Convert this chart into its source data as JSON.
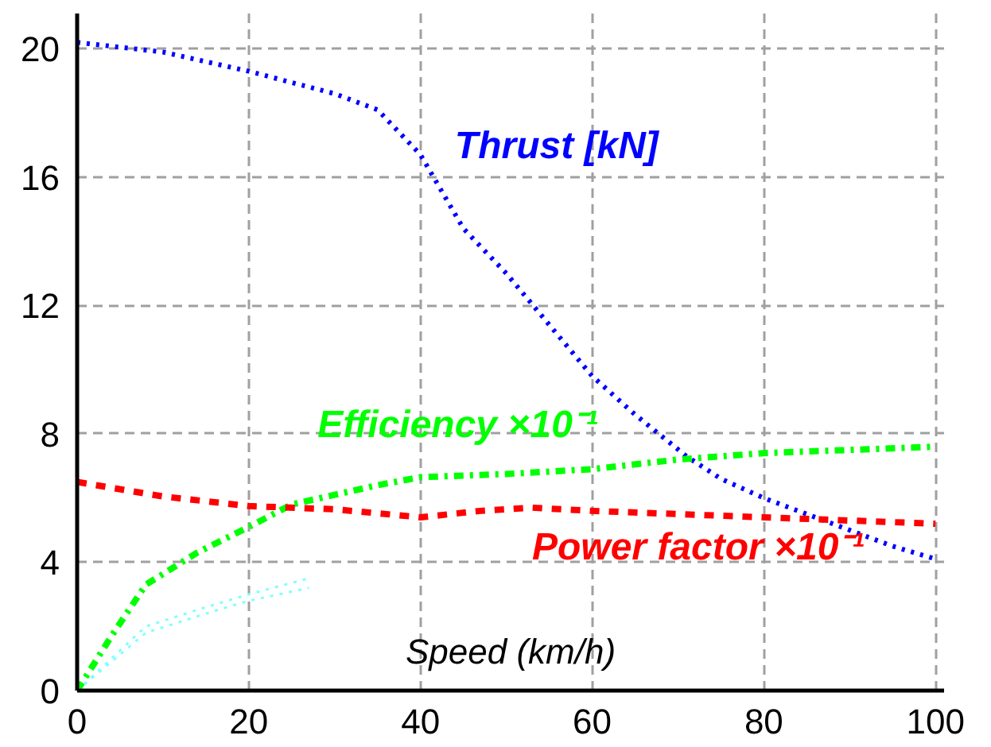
{
  "chart_data": {
    "type": "line",
    "xlabel": "Speed (km/h)",
    "xlim": [
      0,
      101
    ],
    "ylim": [
      0,
      21.1
    ],
    "xticks": [
      0,
      20,
      40,
      60,
      80,
      100
    ],
    "yticks": [
      0,
      4,
      8,
      12,
      16,
      20
    ],
    "grid": true,
    "series": [
      {
        "name": "Thrust [kN]",
        "color": "#0000ff",
        "line_style": "dotted",
        "x": [
          0,
          10,
          20,
          30,
          35,
          40,
          45,
          50,
          55,
          60,
          65,
          71,
          75,
          80,
          85,
          90,
          95,
          100
        ],
        "values": [
          20.2,
          19.9,
          19.3,
          18.6,
          18.1,
          16.7,
          14.4,
          13.0,
          11.4,
          9.8,
          8.6,
          7.3,
          6.6,
          6.0,
          5.5,
          5.0,
          4.5,
          4.1
        ]
      },
      {
        "name": "Efficiency ×10⁻¹",
        "color": "#00ff00",
        "line_style": "dashdot",
        "x": [
          0,
          4,
          8,
          14,
          20,
          25,
          30,
          35,
          40,
          50,
          60,
          70,
          80,
          90,
          100
        ],
        "values": [
          0,
          1.7,
          3.3,
          4.3,
          5.1,
          5.8,
          6.1,
          6.4,
          6.65,
          6.75,
          6.9,
          7.2,
          7.4,
          7.5,
          7.6
        ]
      },
      {
        "name": "Power factor ×10⁻¹",
        "color": "#ff0000",
        "line_style": "dashed",
        "x": [
          0,
          10,
          20,
          30,
          40,
          47,
          53,
          60,
          70,
          80,
          90,
          100
        ],
        "values": [
          6.5,
          6.05,
          5.75,
          5.65,
          5.4,
          5.6,
          5.7,
          5.6,
          5.5,
          5.4,
          5.3,
          5.2
        ]
      },
      {
        "color": "#80ffff",
        "line_style": "dotted",
        "x": [
          0,
          4,
          8,
          15,
          20,
          27
        ],
        "values": [
          0,
          1.0,
          2.0,
          2.6,
          3.0,
          3.5
        ]
      },
      {
        "color": "#80ffff",
        "line_style": "dotted",
        "x": [
          0,
          4,
          8,
          15,
          20,
          27
        ],
        "values": [
          0,
          0.9,
          1.8,
          2.4,
          2.8,
          3.2
        ]
      }
    ]
  }
}
